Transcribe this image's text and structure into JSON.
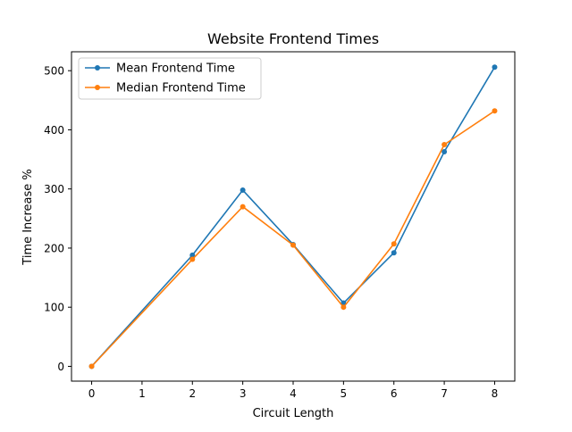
{
  "chart_data": {
    "type": "line",
    "title": "Website Frontend Times",
    "xlabel": "Circuit Length",
    "ylabel": "Time Increase %",
    "xlim": [
      -0.4,
      8.4
    ],
    "ylim": [
      -25,
      532
    ],
    "xticks": [
      0,
      1,
      2,
      3,
      4,
      5,
      6,
      7,
      8
    ],
    "yticks": [
      0,
      100,
      200,
      300,
      400,
      500
    ],
    "grid": false,
    "legend_position": "upper left",
    "series": [
      {
        "name": "Mean Frontend Time",
        "color": "#1f77b4",
        "marker": "circle",
        "x": [
          0,
          2,
          3,
          4,
          5,
          6,
          7,
          8
        ],
        "y": [
          0,
          188,
          298,
          206,
          107,
          192,
          363,
          506
        ]
      },
      {
        "name": "Median Frontend Time",
        "color": "#ff7f0e",
        "marker": "circle",
        "x": [
          0,
          2,
          3,
          4,
          5,
          6,
          7,
          8
        ],
        "y": [
          0,
          181,
          270,
          205,
          100,
          207,
          375,
          432
        ]
      }
    ]
  }
}
